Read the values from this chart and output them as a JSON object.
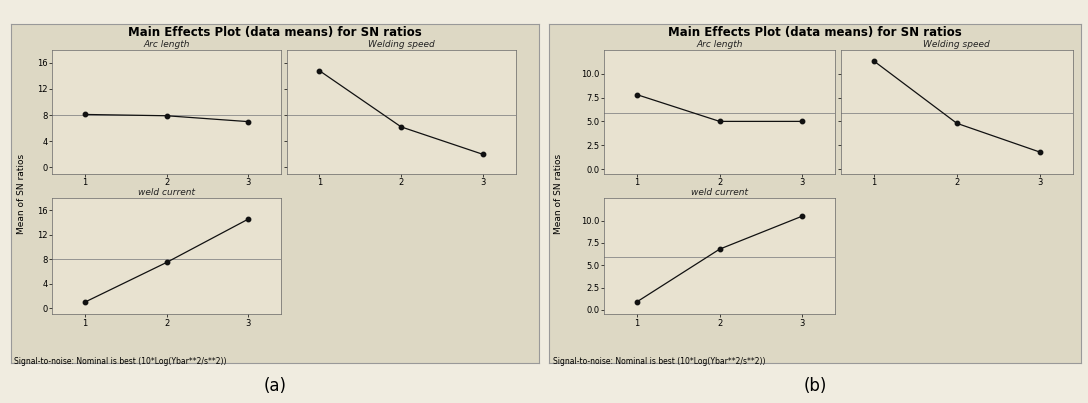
{
  "title": "Main Effects Plot (data means) for SN ratios",
  "ylabel": "Mean of SN ratios",
  "footnote": "Signal-to-noise: Nominal is best (10*Log(Ybar**2/s**2))",
  "bg_color": "#ddd8c4",
  "plot_bg_color": "#e8e2d0",
  "fig_bg_color": "#f0ece0",
  "panel_a": {
    "arc_length": {
      "x": [
        1,
        2,
        3
      ],
      "y": [
        8.1,
        7.9,
        7.0
      ]
    },
    "welding_speed": {
      "x": [
        1,
        2,
        3
      ],
      "y": [
        14.8,
        6.2,
        2.0
      ]
    },
    "weld_current": {
      "x": [
        1,
        2,
        3
      ],
      "y": [
        1.0,
        7.5,
        14.6
      ]
    },
    "ylim": [
      -1,
      18
    ],
    "yticks": [
      0,
      4,
      8,
      12,
      16
    ],
    "ytick_labels": [
      "0",
      "4",
      "8",
      "12",
      "16"
    ],
    "hline": 8.0
  },
  "panel_b": {
    "arc_length": {
      "x": [
        1,
        2,
        3
      ],
      "y": [
        7.8,
        5.0,
        5.0
      ]
    },
    "welding_speed": {
      "x": [
        1,
        2,
        3
      ],
      "y": [
        11.3,
        4.8,
        1.8
      ]
    },
    "weld_current": {
      "x": [
        1,
        2,
        3
      ],
      "y": [
        0.9,
        6.8,
        10.5
      ]
    },
    "ylim": [
      -0.5,
      12.5
    ],
    "yticks": [
      0.0,
      2.5,
      5.0,
      7.5,
      10.0
    ],
    "ytick_labels": [
      "0.0",
      "2.5",
      "5.0",
      "7.5",
      "10.0"
    ],
    "hline": 5.87
  }
}
